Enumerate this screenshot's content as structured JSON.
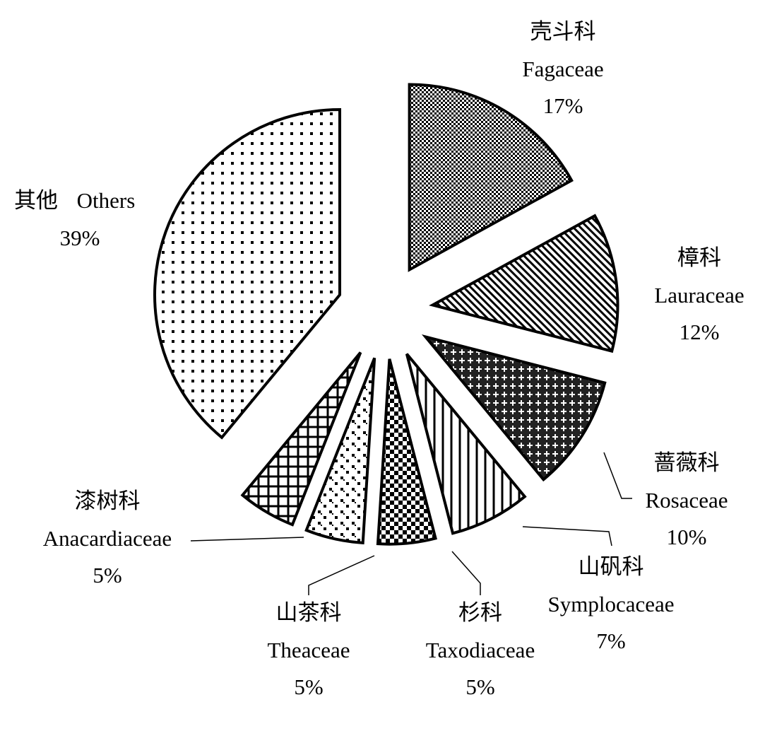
{
  "chart_data": {
    "type": "pie",
    "categories": [
      "Fagaceae",
      "Lauraceae",
      "Rosaceae",
      "Symplocaceae",
      "Taxodiaceae",
      "Theaceae",
      "Anacardiaceae",
      "Others"
    ],
    "category_names_zh": [
      "壳斗科",
      "樟科",
      "蔷薇科",
      "山矾科",
      "杉科",
      "山茶科",
      "漆树科",
      "其他"
    ],
    "values": [
      17,
      12,
      10,
      7,
      5,
      5,
      5,
      39
    ],
    "value_labels": [
      "17%",
      "12%",
      "10%",
      "7%",
      "5%",
      "5%",
      "5%",
      "39%"
    ],
    "edge_color": "#000000"
  }
}
